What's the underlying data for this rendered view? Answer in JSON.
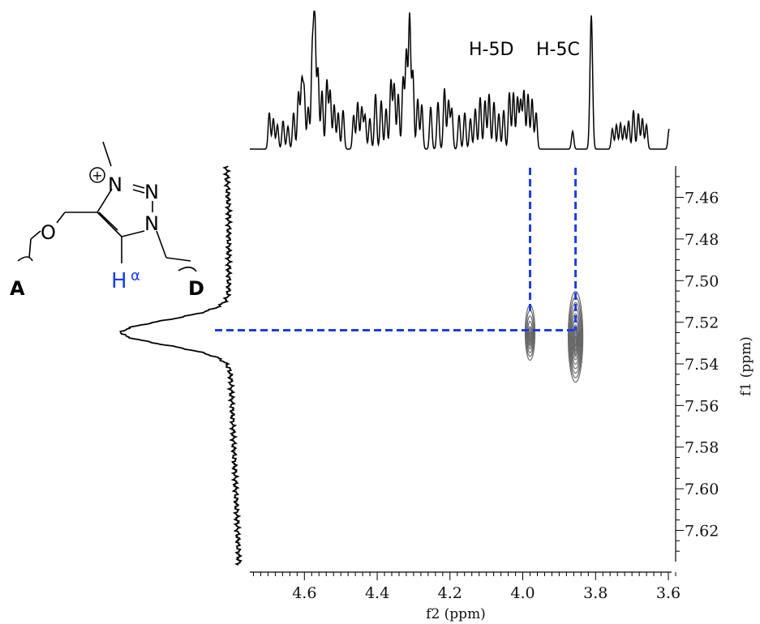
{
  "chart_data": {
    "type": "scatter",
    "subtype": "2D NMR correlation (HMBC-type) with 1D projections",
    "xlabel": "f2 (ppm)",
    "ylabel": "f1 (ppm)",
    "xlim": [
      4.75,
      3.58
    ],
    "ylim": [
      7.445,
      7.635
    ],
    "x_ticks": [
      "4.6",
      "4.4",
      "4.2",
      "4.0",
      "3.8",
      "3.6"
    ],
    "x_tick_values": [
      4.6,
      4.4,
      4.2,
      4.0,
      3.8,
      3.6
    ],
    "y_ticks": [
      "7.46",
      "7.48",
      "7.50",
      "7.52",
      "7.54",
      "7.56",
      "7.58",
      "7.60",
      "7.62"
    ],
    "y_tick_values": [
      7.46,
      7.48,
      7.5,
      7.52,
      7.54,
      7.56,
      7.58,
      7.6,
      7.62
    ],
    "cross_peaks": [
      {
        "x": 3.98,
        "y": 7.525,
        "label": "H-5D"
      },
      {
        "x": 3.855,
        "y": 7.527,
        "label": "H-5C"
      }
    ],
    "f1_projection_peak": 7.525,
    "grid": false,
    "annotation_color": "#1a3ee8",
    "contour_color": "#666666"
  },
  "labels": {
    "h5d": "H-5D",
    "h5c": "H-5C"
  },
  "structure": {
    "plus": "+",
    "n1": "N",
    "n2": "N",
    "n3": "N",
    "o": "O",
    "h": "H",
    "alpha": "α",
    "a": "A",
    "d": "D",
    "h_color": "#1a3ee8"
  }
}
